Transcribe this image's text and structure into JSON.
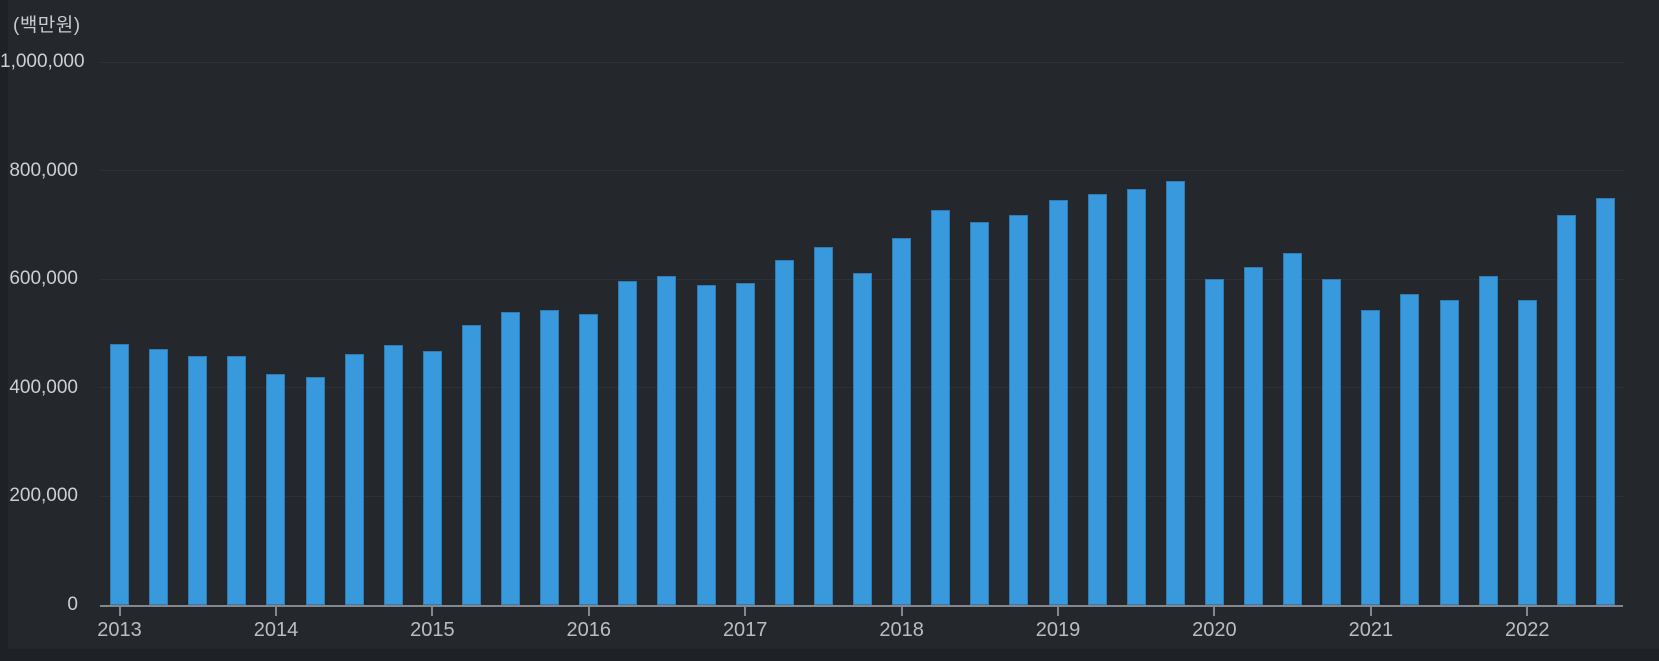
{
  "unit_label": "(백만원)",
  "colors": {
    "background": "#24272c",
    "bar": "#3899dc",
    "gridline": "#2e3237",
    "axis_line": "#84888c",
    "y_label": "#cdd0d2",
    "x_label": "#bbbec1",
    "edge_strip": "#1e2126"
  },
  "chart_data": {
    "type": "bar",
    "title": "",
    "unit_label": "(백만원)",
    "ylabel": "",
    "xlabel": "",
    "ylim": [
      0,
      1000000
    ],
    "grid": true,
    "legend": "none",
    "y_ticks": [
      0,
      200000,
      400000,
      600000,
      800000,
      1000000
    ],
    "y_tick_labels": [
      "0",
      "200,000",
      "400,000",
      "600,000",
      "800,000",
      "1,000,000"
    ],
    "x_tick_labels": [
      "2013",
      "2014",
      "2015",
      "2016",
      "2017",
      "2018",
      "2019",
      "2020",
      "2021",
      "2022"
    ],
    "quarters_per_year": 4,
    "categories": [
      "2013 Q1",
      "2013 Q2",
      "2013 Q3",
      "2013 Q4",
      "2014 Q1",
      "2014 Q2",
      "2014 Q3",
      "2014 Q4",
      "2015 Q1",
      "2015 Q2",
      "2015 Q3",
      "2015 Q4",
      "2016 Q1",
      "2016 Q2",
      "2016 Q3",
      "2016 Q4",
      "2017 Q1",
      "2017 Q2",
      "2017 Q3",
      "2017 Q4",
      "2018 Q1",
      "2018 Q2",
      "2018 Q3",
      "2018 Q4",
      "2019 Q1",
      "2019 Q2",
      "2019 Q3",
      "2019 Q4",
      "2020 Q1",
      "2020 Q2",
      "2020 Q3",
      "2020 Q4",
      "2021 Q1",
      "2021 Q2",
      "2021 Q3",
      "2021 Q4",
      "2022 Q1",
      "2022 Q2",
      "2022 Q3"
    ],
    "values": [
      480000,
      472000,
      458000,
      458000,
      426000,
      419000,
      462000,
      478000,
      467000,
      516000,
      539000,
      544000,
      535000,
      596000,
      605000,
      589000,
      593000,
      635000,
      660000,
      611000,
      675000,
      727000,
      705000,
      719000,
      746000,
      757000,
      767000,
      780000,
      601000,
      623000,
      648000,
      601000,
      544000,
      573000,
      561000,
      606000,
      561000,
      719000,
      750000
    ]
  }
}
